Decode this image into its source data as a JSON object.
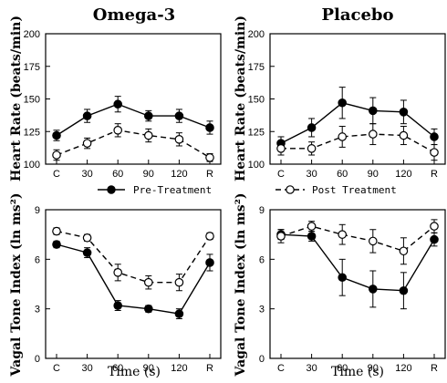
{
  "chart_data": [
    {
      "type": "line",
      "title": "Omega-3",
      "ylabel": "Heart Rate (beats/min)",
      "xlabel": "",
      "categories": [
        "C",
        "30",
        "60",
        "90",
        "120",
        "R"
      ],
      "ylim": [
        100,
        200
      ],
      "yticks": [
        "100",
        "125",
        "150",
        "175",
        "200"
      ],
      "series": [
        {
          "name": "Pre-Treatment",
          "marker": "filled",
          "values": [
            122,
            137,
            146,
            137,
            137,
            128
          ],
          "err": [
            4,
            5,
            6,
            4,
            5,
            5
          ]
        },
        {
          "name": "Post Treatment",
          "marker": "open",
          "values": [
            107,
            116,
            126,
            122,
            119,
            105
          ],
          "err": [
            4,
            4,
            5,
            5,
            5,
            3
          ]
        }
      ]
    },
    {
      "type": "line",
      "title": "Placebo",
      "ylabel": "Heart Rate (beats/min)",
      "xlabel": "",
      "categories": [
        "C",
        "30",
        "60",
        "90",
        "120",
        "R"
      ],
      "ylim": [
        100,
        200
      ],
      "yticks": [
        "100",
        "125",
        "150",
        "175",
        "200"
      ],
      "series": [
        {
          "name": "Pre-Treatment",
          "marker": "filled",
          "values": [
            116,
            128,
            147,
            141,
            140,
            121
          ],
          "err": [
            5,
            7,
            12,
            10,
            9,
            6
          ]
        },
        {
          "name": "Post Treatment",
          "marker": "open",
          "values": [
            112,
            112,
            121,
            123,
            122,
            109
          ],
          "err": [
            5,
            5,
            8,
            8,
            7,
            6
          ]
        }
      ]
    },
    {
      "type": "line",
      "title": "",
      "ylabel": "Vagal Tone Index (ln ms²)",
      "xlabel": "Time (s)",
      "categories": [
        "C",
        "30",
        "60",
        "90",
        "120",
        "R"
      ],
      "ylim": [
        0,
        9
      ],
      "yticks": [
        "0",
        "3",
        "6",
        "9"
      ],
      "series": [
        {
          "name": "Pre-Treatment",
          "marker": "filled",
          "values": [
            6.9,
            6.4,
            3.2,
            3.0,
            2.7,
            5.8
          ],
          "err": [
            0.2,
            0.3,
            0.3,
            0.2,
            0.3,
            0.5
          ]
        },
        {
          "name": "Post Treatment",
          "marker": "open",
          "values": [
            7.7,
            7.3,
            5.2,
            4.6,
            4.6,
            7.4
          ],
          "err": [
            0.2,
            0.2,
            0.5,
            0.4,
            0.5,
            0.2
          ]
        }
      ]
    },
    {
      "type": "line",
      "title": "",
      "ylabel": "Vagal Tone Index (ln ms²)",
      "xlabel": "Time (s)",
      "categories": [
        "C",
        "30",
        "60",
        "90",
        "120",
        "R"
      ],
      "ylim": [
        0,
        9
      ],
      "yticks": [
        "0",
        "3",
        "6",
        "9"
      ],
      "series": [
        {
          "name": "Pre-Treatment",
          "marker": "filled",
          "values": [
            7.5,
            7.4,
            4.9,
            4.2,
            4.1,
            7.2
          ],
          "err": [
            0.3,
            0.3,
            1.1,
            1.1,
            1.1,
            0.4
          ]
        },
        {
          "name": "Post Treatment",
          "marker": "open",
          "values": [
            7.4,
            8.0,
            7.5,
            7.1,
            6.5,
            8.0
          ],
          "err": [
            0.4,
            0.3,
            0.6,
            0.7,
            0.8,
            0.4
          ]
        }
      ]
    }
  ],
  "legend": {
    "pre_label": "Pre-Treatment",
    "post_label": "Post Treatment"
  }
}
